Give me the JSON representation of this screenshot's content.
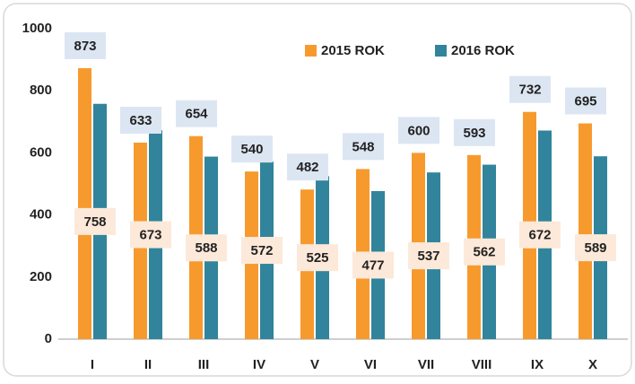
{
  "chart_data": {
    "type": "bar",
    "categories": [
      "I",
      "II",
      "III",
      "IV",
      "V",
      "VI",
      "VII",
      "VIII",
      "IX",
      "X"
    ],
    "series": [
      {
        "name": "2015 ROK",
        "color": "#f79a2e",
        "values": [
          873,
          633,
          654,
          540,
          482,
          548,
          600,
          593,
          732,
          695
        ]
      },
      {
        "name": "2016 ROK",
        "color": "#31849b",
        "values": [
          758,
          673,
          588,
          572,
          525,
          477,
          537,
          562,
          672,
          589
        ]
      }
    ],
    "ylim": [
      0,
      1000
    ],
    "yticks": [
      0,
      200,
      400,
      600,
      800,
      1000
    ],
    "grid": false,
    "legend": "top"
  }
}
